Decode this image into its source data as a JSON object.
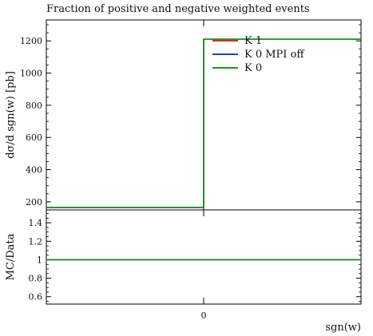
{
  "chart_data": [
    {
      "type": "line",
      "title": "Fraction of positive and negative weighted events",
      "ylabel": "dσ/d sgn(w) [pb]",
      "xlabel": "",
      "x_edges": [
        -1,
        0,
        1
      ],
      "x_tick_labels": [],
      "ylim": [
        150,
        1330
      ],
      "yticks": [
        200,
        400,
        600,
        800,
        1000,
        1200
      ],
      "legend_position": "top-right",
      "series": [
        {
          "name": "K 1",
          "color": "#e0281e",
          "values": [
            165,
            1210
          ]
        },
        {
          "name": "K 0 MPI off",
          "color": "#1f3fd1",
          "values": [
            165,
            1210
          ]
        },
        {
          "name": "K 0",
          "color": "#1a9a1a",
          "values": [
            165,
            1210
          ]
        }
      ]
    },
    {
      "type": "line",
      "title": "",
      "ylabel": "MC/Data",
      "xlabel": "sgn(w)",
      "x_edges": [
        -1,
        0,
        1
      ],
      "x_tick_labels": [
        "0"
      ],
      "ylim": [
        0.52,
        1.54
      ],
      "yticks": [
        0.6,
        0.8,
        1,
        1.2,
        1.4
      ],
      "series": [
        {
          "name": "K 1",
          "color": "#e0281e",
          "values": [
            1.0,
            1.0
          ]
        },
        {
          "name": "K 0 MPI off",
          "color": "#1f3fd1",
          "values": [
            1.0,
            1.0
          ]
        },
        {
          "name": "K 0",
          "color": "#1a9a1a",
          "values": [
            1.0,
            1.0
          ]
        }
      ]
    }
  ]
}
